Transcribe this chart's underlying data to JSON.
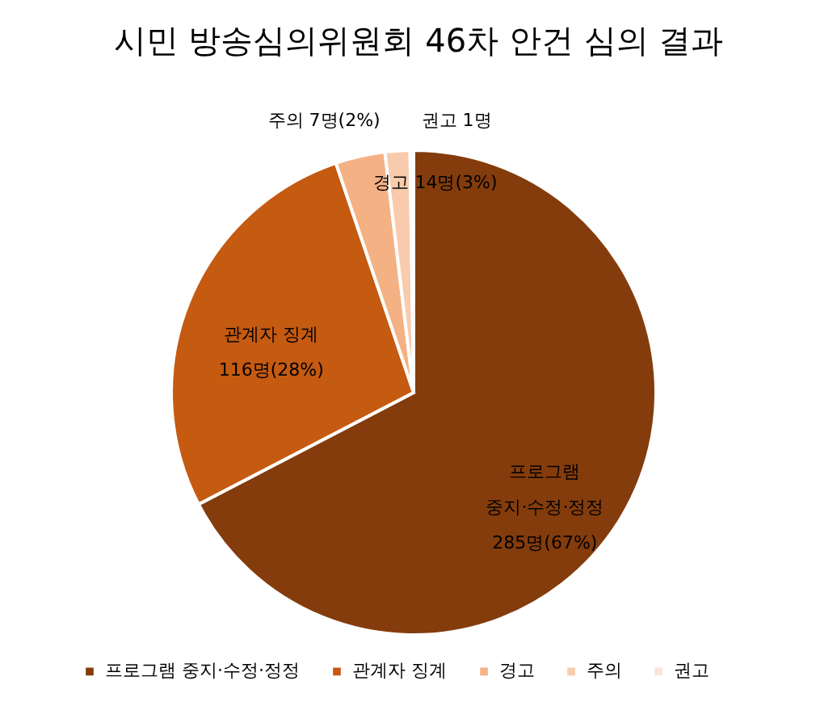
{
  "chart_data": {
    "type": "pie",
    "title": "시민 방송심의위원회 46차 안건 심의 결과",
    "categories": [
      "프로그램 중지·수정·정정",
      "관계자 징계",
      "경고",
      "주의",
      "권고"
    ],
    "values": [
      285,
      116,
      14,
      7,
      1
    ],
    "colors": [
      "#843c0c",
      "#c55a11",
      "#f4b183",
      "#f8cbad",
      "#fbe5d6"
    ],
    "value_labels": [
      "285명(67%)",
      "116명(28%)",
      "14명(3%)",
      "7명(2%)",
      "1명"
    ],
    "legend": "bottom"
  }
}
